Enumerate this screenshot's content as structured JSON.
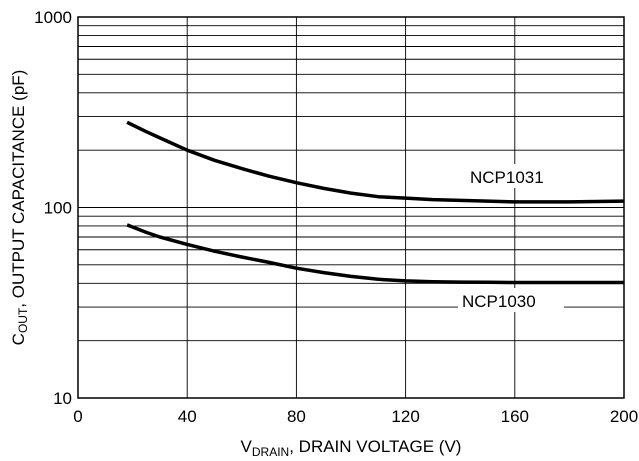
{
  "chart_data": {
    "type": "line",
    "x_axis": {
      "label_main": "V",
      "label_sub": "DRAIN",
      "label_rest": ", DRAIN VOLTAGE (V)",
      "range": [
        0,
        200
      ],
      "ticks": [
        "0",
        "40",
        "80",
        "120",
        "160",
        "200"
      ],
      "tick_values": [
        0,
        40,
        80,
        120,
        160,
        200
      ]
    },
    "y_axis": {
      "label_main": "C",
      "label_sub": "OUT",
      "label_rest": ", OUTPUT CAPACITANCE (pF)",
      "scale": "log",
      "range": [
        10,
        1000
      ],
      "ticks": [
        "10",
        "100",
        "1000"
      ],
      "tick_values": [
        10,
        100,
        1000
      ]
    },
    "grid": true,
    "series": [
      {
        "name": "NCP1031",
        "x": [
          18,
          25,
          30,
          40,
          50,
          60,
          70,
          80,
          90,
          100,
          110,
          120,
          130,
          140,
          150,
          160,
          170,
          180,
          190,
          200
        ],
        "y": [
          280,
          250,
          232,
          200,
          177,
          160,
          146,
          135,
          126,
          119,
          114,
          112,
          110,
          109,
          108,
          107,
          107,
          107,
          107.5,
          108
        ]
      },
      {
        "name": "NCP1030",
        "x": [
          18,
          25,
          30,
          40,
          50,
          60,
          70,
          80,
          90,
          100,
          110,
          120,
          130,
          140,
          150,
          160,
          170,
          180,
          190,
          200
        ],
        "y": [
          81,
          74,
          70,
          64,
          59,
          55,
          51.5,
          48,
          45.5,
          43.5,
          42,
          41.2,
          40.8,
          40.6,
          40.5,
          40.4,
          40.4,
          40.4,
          40.4,
          40.4
        ]
      }
    ]
  }
}
